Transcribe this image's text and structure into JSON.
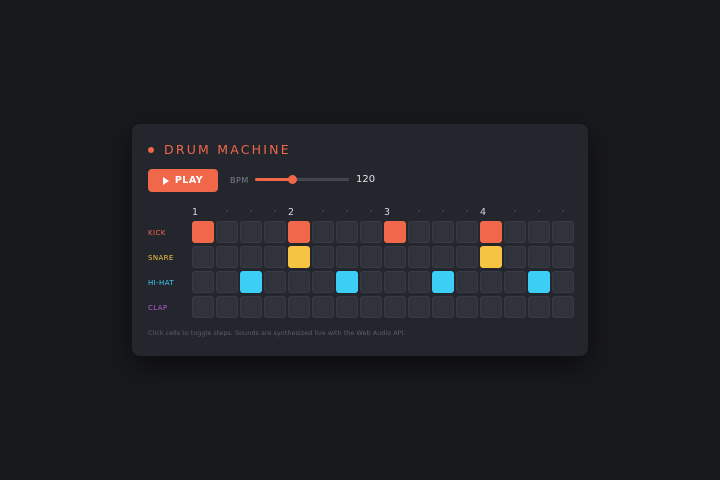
{
  "app": {
    "title": "DRUM MACHINE"
  },
  "transport": {
    "play_label": "PLAY",
    "bpm_label": "BPM",
    "bpm_value": "120",
    "bpm_fraction": 0.4
  },
  "beats": [
    "1",
    "·",
    "·",
    "·",
    "2",
    "·",
    "·",
    "·",
    "3",
    "·",
    "·",
    "·",
    "4",
    "·",
    "·",
    "·"
  ],
  "tracks": [
    {
      "label": "KICK",
      "color": "#f0674a",
      "steps": [
        1,
        0,
        0,
        0,
        1,
        0,
        0,
        0,
        1,
        0,
        0,
        0,
        1,
        0,
        0,
        0
      ]
    },
    {
      "label": "SNARE",
      "color": "#f5c542",
      "steps": [
        0,
        0,
        0,
        0,
        1,
        0,
        0,
        0,
        0,
        0,
        0,
        0,
        1,
        0,
        0,
        0
      ]
    },
    {
      "label": "HI-HAT",
      "color": "#3ccff5",
      "steps": [
        0,
        0,
        1,
        0,
        0,
        0,
        1,
        0,
        0,
        0,
        1,
        0,
        0,
        0,
        1,
        0
      ]
    },
    {
      "label": "CLAP",
      "color": "#b35fd6",
      "steps": [
        0,
        0,
        0,
        0,
        0,
        0,
        0,
        0,
        0,
        0,
        0,
        0,
        0,
        0,
        0,
        0
      ]
    }
  ],
  "footer": "Click cells to toggle steps. Sounds are synthesized live with the Web Audio API.",
  "colors": {
    "accent": "#f0674a",
    "panel": "#24262d",
    "background": "#18191d"
  },
  "icons": {
    "play": "play-icon",
    "record": "record-dot-icon"
  }
}
